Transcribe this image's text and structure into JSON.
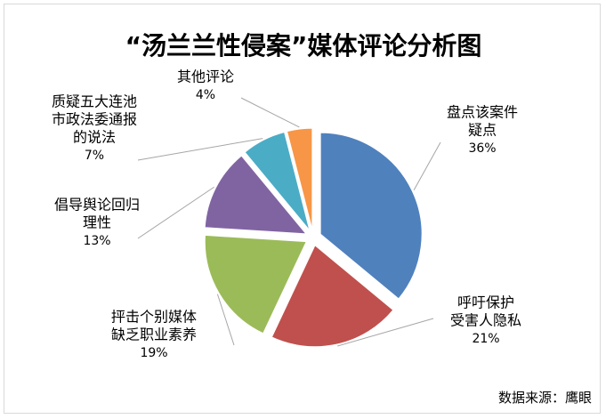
{
  "chart_data": {
    "type": "pie",
    "title": "“汤兰兰性侵案”媒体评论分析图",
    "source": "数据来源：鹰眼",
    "slices": [
      {
        "label_lines": [
          "盘点该案件",
          "疑点"
        ],
        "value": 36,
        "pct_label": "36%",
        "color": "#4F81BD"
      },
      {
        "label_lines": [
          "呼吁保护",
          "受害人隐私"
        ],
        "value": 21,
        "pct_label": "21%",
        "color": "#C0504D"
      },
      {
        "label_lines": [
          "抨击个别媒体",
          "缺乏职业素养"
        ],
        "value": 19,
        "pct_label": "19%",
        "color": "#9BBB59"
      },
      {
        "label_lines": [
          "倡导舆论回归",
          "理性"
        ],
        "value": 13,
        "pct_label": "13%",
        "color": "#8064A2"
      },
      {
        "label_lines": [
          "质疑五大连池",
          "市政法委通报",
          "的说法"
        ],
        "value": 7,
        "pct_label": "7%",
        "color": "#4BACC6"
      },
      {
        "label_lines": [
          "其他评论"
        ],
        "value": 4,
        "pct_label": "4%",
        "color": "#F79646"
      }
    ]
  }
}
